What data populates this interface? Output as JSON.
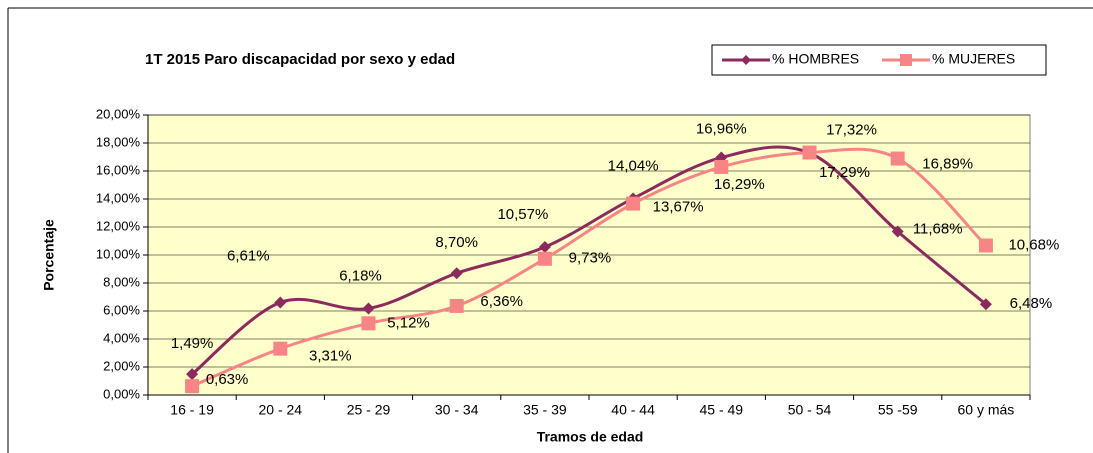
{
  "chart_data": {
    "type": "line",
    "title": "1T 2015 Paro discapacidad por sexo y edad",
    "x_label": "Tramos de edad",
    "y_label": "Porcentaje",
    "categories": [
      "16 - 19",
      "20 - 24",
      "25 - 29",
      "30 - 34",
      "35 - 39",
      "40 - 44",
      "45 - 49",
      "50 - 54",
      "55 -59",
      "60 y más"
    ],
    "series": [
      {
        "name": "% HOMBRES",
        "color": "#8b2a5e",
        "values": [
          1.49,
          6.61,
          6.18,
          8.7,
          10.57,
          14.04,
          16.96,
          17.29,
          11.68,
          6.48
        ],
        "value_labels": [
          "1,49%",
          "6,61%",
          "6,18%",
          "8,70%",
          "10,57%",
          "14,04%",
          "16,96%",
          "17,29%",
          "11,68%",
          "6,48%"
        ]
      },
      {
        "name": "% MUJERES",
        "color": "#f88585",
        "values": [
          0.63,
          3.31,
          5.12,
          6.36,
          9.73,
          13.67,
          16.29,
          17.32,
          16.89,
          10.68
        ],
        "value_labels": [
          "0,63%",
          "3,31%",
          "5,12%",
          "6,36%",
          "9,73%",
          "13,67%",
          "16,29%",
          "17,32%",
          "16,89%",
          "10,68%"
        ]
      }
    ],
    "ylim": [
      0,
      20
    ],
    "yticks": [
      {
        "value": 0,
        "label": "0,00%"
      },
      {
        "value": 2,
        "label": "2,00%"
      },
      {
        "value": 4,
        "label": "4,00%"
      },
      {
        "value": 6,
        "label": "6,00%"
      },
      {
        "value": 8,
        "label": "8,00%"
      },
      {
        "value": 10,
        "label": "10,00%"
      },
      {
        "value": 12,
        "label": "12,00%"
      },
      {
        "value": 14,
        "label": "14,00%"
      },
      {
        "value": 16,
        "label": "16,00%"
      },
      {
        "value": 18,
        "label": "18,00%"
      },
      {
        "value": 20,
        "label": "20,00%"
      }
    ],
    "grid": true,
    "smooth": true,
    "legend": "top-right",
    "plot_background": "#ffffcc"
  }
}
